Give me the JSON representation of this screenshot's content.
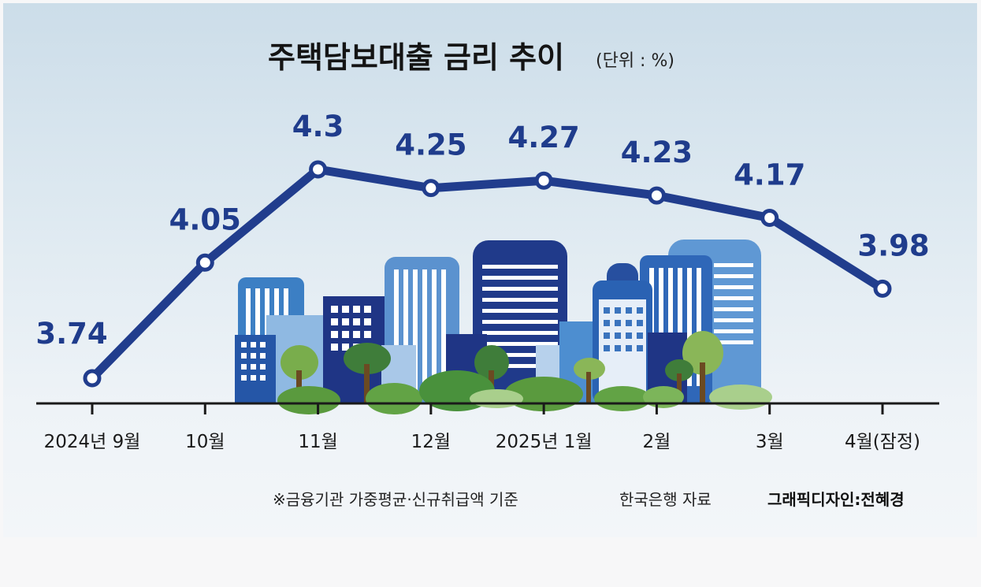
{
  "title": "주택담보대출 금리 추이",
  "unit": "(단위 : %)",
  "chart_data": {
    "type": "line",
    "title": "주택담보대출 금리 추이",
    "unit": "%",
    "categories": [
      "2024년 9월",
      "10월",
      "11월",
      "12월",
      "2025년 1월",
      "2월",
      "3월",
      "4월(잠정)"
    ],
    "values": [
      3.74,
      4.05,
      4.3,
      4.25,
      4.27,
      4.23,
      4.17,
      3.98
    ],
    "value_labels": [
      "3.74",
      "4.05",
      "4.3",
      "4.25",
      "4.27",
      "4.23",
      "4.17",
      "3.98"
    ],
    "ylim": [
      3.6,
      4.4
    ],
    "grid": false,
    "legend": "none",
    "line_color": "#213d8d"
  },
  "footnote": "※금융기관 가중평균·신규취급액 기준",
  "source": "한국은행 자료",
  "credit": "그래픽디자인:전혜경"
}
